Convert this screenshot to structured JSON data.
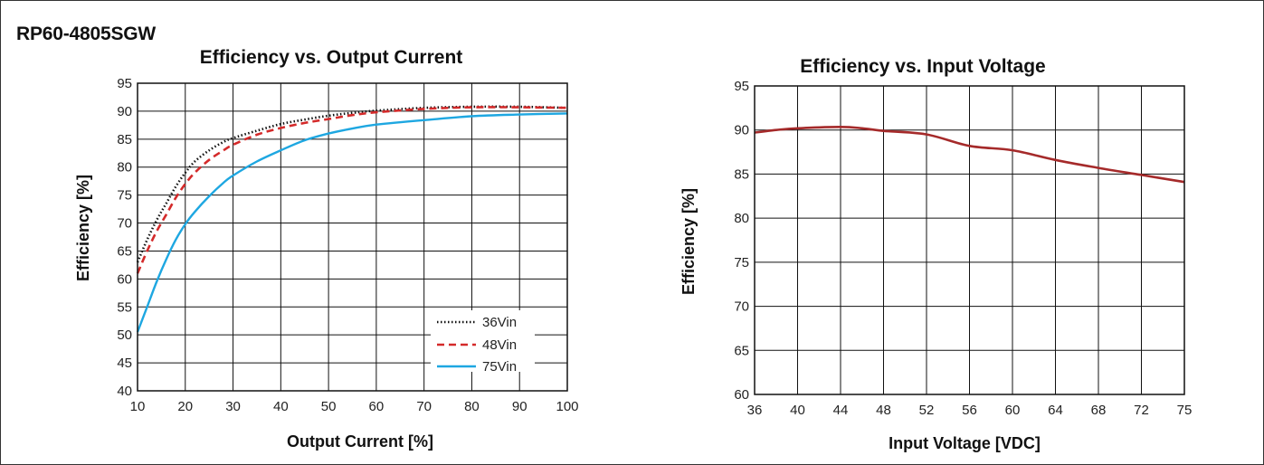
{
  "page": {
    "title": "RP60-4805SGW"
  },
  "chart_data": [
    {
      "type": "line",
      "title": "Efficiency vs. Output Current",
      "xlabel": "Output Current [%]",
      "ylabel": "Efficiency [%]",
      "xlim": [
        10,
        100
      ],
      "ylim": [
        40,
        95
      ],
      "xticks": [
        10,
        20,
        30,
        40,
        50,
        60,
        70,
        80,
        90,
        100
      ],
      "yticks": [
        40,
        45,
        50,
        55,
        60,
        65,
        70,
        75,
        80,
        85,
        90,
        95
      ],
      "grid": true,
      "legend_position": "bottom-right",
      "series": [
        {
          "name": "36Vin",
          "color": "#111111",
          "style": "dotted",
          "x": [
            10,
            12,
            14,
            16,
            18,
            20,
            22,
            25,
            28,
            30,
            35,
            40,
            45,
            50,
            55,
            60,
            70,
            80,
            90,
            100
          ],
          "y": [
            63,
            67,
            70.5,
            73.5,
            76.5,
            79,
            81,
            83,
            84.5,
            85.2,
            86.5,
            87.7,
            88.5,
            89.2,
            89.7,
            90.1,
            90.6,
            90.8,
            90.8,
            90.6
          ]
        },
        {
          "name": "48Vin",
          "color": "#d42a2a",
          "style": "dashed",
          "x": [
            10,
            12,
            14,
            16,
            18,
            20,
            22,
            25,
            28,
            30,
            35,
            40,
            45,
            50,
            55,
            60,
            70,
            80,
            90,
            100
          ],
          "y": [
            61,
            65,
            68.5,
            71.5,
            74.5,
            77,
            79,
            81.3,
            83,
            84,
            85.8,
            87,
            87.9,
            88.6,
            89.3,
            89.8,
            90.4,
            90.7,
            90.7,
            90.6
          ]
        },
        {
          "name": "75Vin",
          "color": "#1ea7e1",
          "style": "solid",
          "x": [
            10,
            12,
            14,
            16,
            18,
            20,
            22,
            25,
            28,
            30,
            35,
            40,
            45,
            50,
            55,
            60,
            70,
            80,
            90,
            100
          ],
          "y": [
            50.5,
            55,
            59.5,
            63.5,
            67,
            69.8,
            72,
            74.8,
            77.2,
            78.5,
            81,
            83,
            84.8,
            86,
            86.9,
            87.6,
            88.4,
            89.1,
            89.4,
            89.6
          ]
        }
      ]
    },
    {
      "type": "line",
      "title": "Efficiency vs. Input Voltage",
      "xlabel": "Input Voltage [VDC]",
      "ylabel": "Efficiency [%]",
      "xcategories": [
        "36",
        "40",
        "44",
        "48",
        "52",
        "56",
        "60",
        "64",
        "68",
        "72",
        "75"
      ],
      "ylim": [
        60,
        95
      ],
      "yticks": [
        60,
        65,
        70,
        75,
        80,
        85,
        90,
        95
      ],
      "grid": true,
      "series": [
        {
          "color": "#a52a2a",
          "style": "solid",
          "x_index": [
            0,
            0.5,
            1,
            2,
            2.5,
            3,
            4,
            5,
            6,
            7,
            8,
            9,
            10
          ],
          "y": [
            89.7,
            90.0,
            90.2,
            90.35,
            90.2,
            89.9,
            89.5,
            88.2,
            87.7,
            86.6,
            85.7,
            84.9,
            84.1
          ]
        }
      ]
    }
  ]
}
